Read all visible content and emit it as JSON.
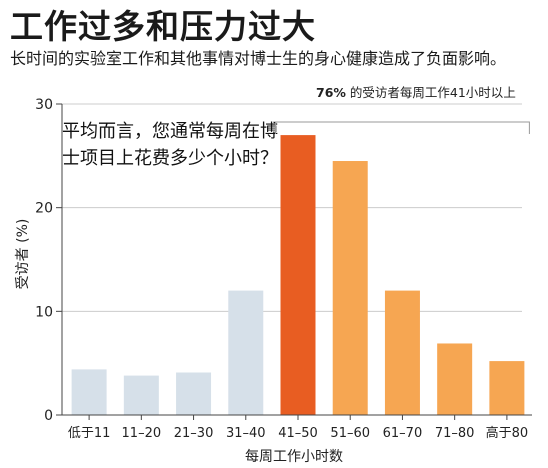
{
  "header": {
    "title": "工作过多和压力过大",
    "subtitle": "长时间的实验室工作和其他事情对博士生的身心健康造成了负面影响。"
  },
  "callout": {
    "percent": "76%",
    "text": "的受访者每周工作41小时以上"
  },
  "question": "平均而言，您通常每周在博士项目上花费多少个小时？",
  "colors": {
    "grey": "#d6e0e9",
    "highlight": "#e85d22",
    "orange": "#f6a652",
    "axis": "#444444",
    "grid": "#cccccc"
  },
  "chart_data": {
    "type": "bar",
    "title": "工作过多和压力过大",
    "xlabel": "每周工作小时数",
    "ylabel": "受访者 (%)",
    "ylim": [
      0,
      30
    ],
    "yticks": [
      0,
      10,
      20,
      30
    ],
    "grid": true,
    "categories": [
      "低于11",
      "11–20",
      "21–30",
      "31–40",
      "41–50",
      "51–60",
      "61–70",
      "71–80",
      "高于80"
    ],
    "values": [
      4.4,
      3.8,
      4.1,
      12.0,
      27.0,
      24.5,
      12.0,
      6.9,
      5.2
    ],
    "bar_colors": [
      "grey",
      "grey",
      "grey",
      "grey",
      "highlight",
      "orange",
      "orange",
      "orange",
      "orange"
    ]
  }
}
